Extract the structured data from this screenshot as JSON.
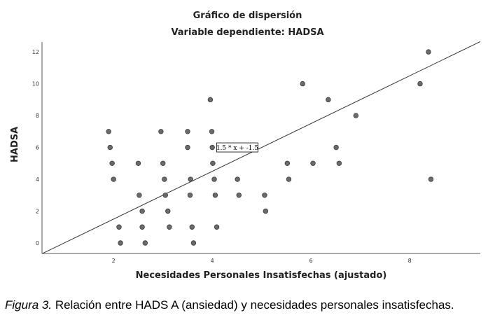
{
  "chart_data": {
    "type": "scatter",
    "title": "Gráfico de dispersión",
    "subtitle": "Variable dependiente: HADSA",
    "xlabel": "Necesidades Personales Insatisfechas (ajustado)",
    "ylabel": "HADSA",
    "xlim": [
      0.55,
      9.43
    ],
    "ylim": [
      -0.66,
      12.62
    ],
    "x_ticks": [
      2,
      4,
      6,
      8
    ],
    "y_ticks": [
      0,
      2,
      4,
      6,
      8,
      10,
      12
    ],
    "grid": false,
    "legend": null,
    "fit_line": {
      "equation_label": "1.5 * x + -1.5",
      "slope": 1.5,
      "intercept": -1.5,
      "label_x": 4.5,
      "label_y": 6
    },
    "series": [
      {
        "name": "HADSA",
        "points": [
          [
            1.9,
            7
          ],
          [
            1.93,
            6
          ],
          [
            1.97,
            5
          ],
          [
            2.0,
            4
          ],
          [
            2.11,
            1
          ],
          [
            2.14,
            0
          ],
          [
            2.5,
            5
          ],
          [
            2.52,
            3
          ],
          [
            2.58,
            2
          ],
          [
            2.58,
            1
          ],
          [
            2.64,
            0
          ],
          [
            2.96,
            7
          ],
          [
            3.0,
            5
          ],
          [
            3.03,
            4
          ],
          [
            3.05,
            3
          ],
          [
            3.1,
            2
          ],
          [
            3.13,
            1
          ],
          [
            3.5,
            7
          ],
          [
            3.5,
            6
          ],
          [
            3.55,
            3
          ],
          [
            3.56,
            4
          ],
          [
            3.59,
            1
          ],
          [
            3.62,
            0
          ],
          [
            3.96,
            9
          ],
          [
            3.99,
            7
          ],
          [
            4.0,
            6
          ],
          [
            4.01,
            5
          ],
          [
            4.04,
            4
          ],
          [
            4.06,
            3
          ],
          [
            4.09,
            1
          ],
          [
            4.51,
            4
          ],
          [
            4.54,
            3
          ],
          [
            5.06,
            3
          ],
          [
            5.08,
            2
          ],
          [
            5.52,
            5
          ],
          [
            5.55,
            4
          ],
          [
            5.83,
            10
          ],
          [
            6.04,
            5
          ],
          [
            6.35,
            9
          ],
          [
            6.51,
            6
          ],
          [
            6.57,
            5
          ],
          [
            6.91,
            8
          ],
          [
            8.21,
            10
          ],
          [
            8.38,
            12
          ],
          [
            8.43,
            4
          ]
        ]
      }
    ]
  },
  "colors": {
    "point_fill": "#6b6b6b",
    "point_stroke": "#3a3a3a",
    "axis": "#555555",
    "line": "#333333"
  },
  "caption": {
    "figure_label": "Figura 3.",
    "text": " Relación entre HADS A (ansiedad) y necesidades personales insatisfechas."
  }
}
